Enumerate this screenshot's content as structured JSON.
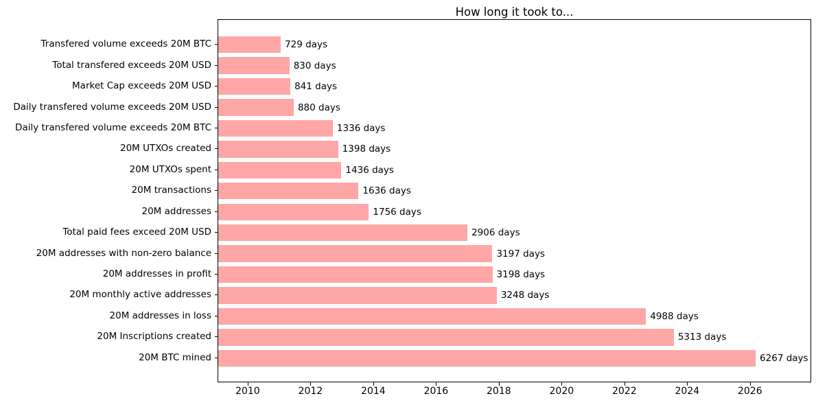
{
  "chart_data": {
    "type": "bar",
    "orientation": "horizontal",
    "title": "How long it took to...",
    "categories": [
      "Transfered volume exceeds 20M BTC",
      "Total transfered exceeds 20M USD",
      "Market Cap exceeds 20M USD",
      "Daily transfered volume exceeds 20M USD",
      "Daily transfered volume exceeds 20M BTC",
      "20M UTXOs created",
      "20M UTXOs spent",
      "20M transactions",
      "20M addresses",
      "Total paid fees exceed 20M USD",
      "20M addresses with non-zero balance",
      "20M addresses in profit",
      "20M monthly active addresses",
      "20M addresses in loss",
      "20M Inscriptions created",
      "20M BTC mined"
    ],
    "values": [
      729,
      830,
      841,
      880,
      1336,
      1398,
      1436,
      1636,
      1756,
      2906,
      3197,
      3198,
      3248,
      4988,
      5313,
      6267
    ],
    "annotations": [
      "729 days",
      "830 days",
      "841 days",
      "880 days",
      "1336 days",
      "1398 days",
      "1436 days",
      "1636 days",
      "1756 days",
      "2906 days",
      "3197 days",
      "3198 days",
      "3248 days",
      "4988 days",
      "5313 days",
      "6267 days"
    ],
    "unit": "days",
    "xlabel": "",
    "ylabel": "",
    "xticks": [
      2010,
      2012,
      2014,
      2016,
      2018,
      2020,
      2022,
      2024,
      2026
    ],
    "xlim": [
      2009.04,
      2027.95
    ],
    "days_per_year": 365.25,
    "bar_color": "#ffa6a6",
    "axis_color": "#000000",
    "text_color": "#000000",
    "background_color": "#ffffff",
    "grid": false,
    "legend": false
  }
}
